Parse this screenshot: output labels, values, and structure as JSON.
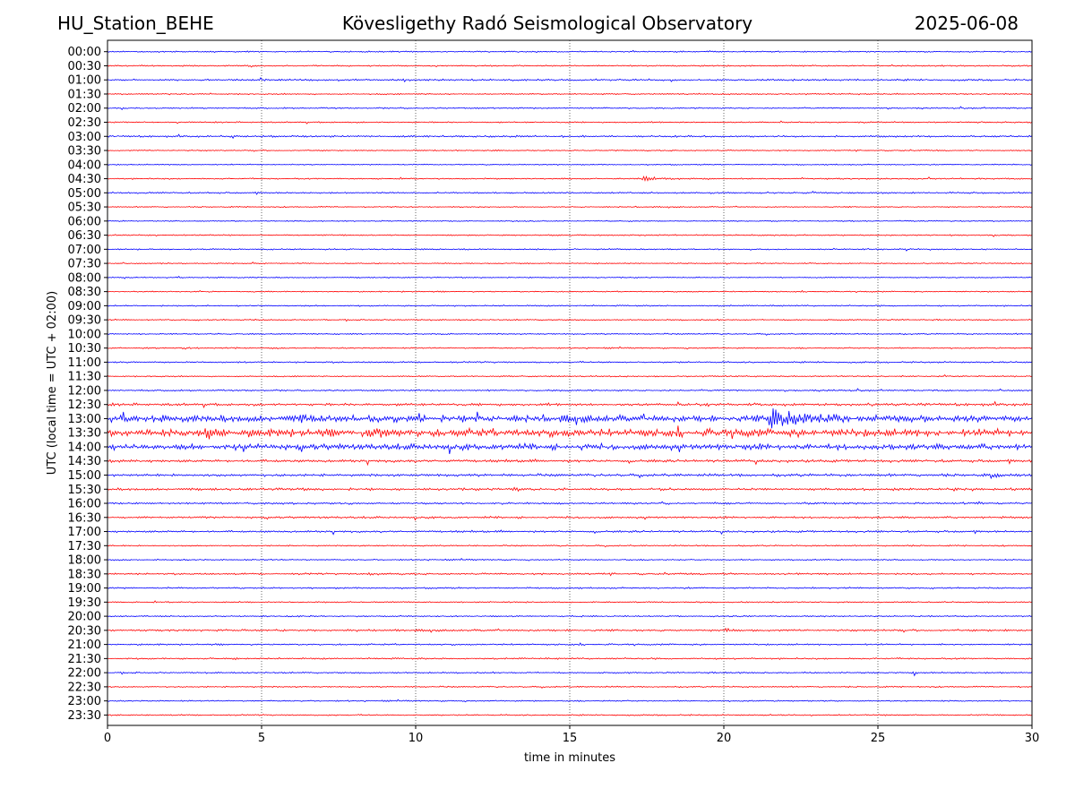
{
  "header": {
    "station": "HU_Station_BEHE",
    "observatory": "Kövesligethy Radó Seismological Observatory",
    "date": "2025-06-08"
  },
  "chart_data": {
    "type": "line",
    "title": "Kövesligethy Radó Seismological Observatory",
    "xlabel": "time in minutes",
    "ylabel": "UTC (local time = UTC + 02:00)",
    "xlim": [
      0,
      30
    ],
    "xticks": [
      0,
      5,
      10,
      15,
      20,
      25,
      30
    ],
    "grid_x": "dotted vertical lines at 5-minute ticks",
    "row_labels": [
      "00:00",
      "00:30",
      "01:00",
      "01:30",
      "02:00",
      "02:30",
      "03:00",
      "03:30",
      "04:00",
      "04:30",
      "05:00",
      "05:30",
      "06:00",
      "06:30",
      "07:00",
      "07:30",
      "08:00",
      "08:30",
      "09:00",
      "09:30",
      "10:00",
      "10:30",
      "11:00",
      "11:30",
      "12:00",
      "12:30",
      "13:00",
      "13:30",
      "14:00",
      "14:30",
      "15:00",
      "15:30",
      "16:00",
      "16:30",
      "17:00",
      "17:30",
      "18:00",
      "18:30",
      "19:00",
      "19:30",
      "20:00",
      "20:30",
      "21:00",
      "21:30",
      "22:00",
      "22:30",
      "23:00",
      "23:30"
    ],
    "row_colors": [
      "#0000ff",
      "#ff0000"
    ],
    "row_noise": [
      0.6,
      0.6,
      0.8,
      0.6,
      0.6,
      0.6,
      0.8,
      0.5,
      0.5,
      0.6,
      0.7,
      0.5,
      0.5,
      0.6,
      0.6,
      0.5,
      0.5,
      0.5,
      0.6,
      0.6,
      0.6,
      0.6,
      0.7,
      0.6,
      0.7,
      1.2,
      3.0,
      3.4,
      2.6,
      1.2,
      1.2,
      1.1,
      0.9,
      0.9,
      0.9,
      0.6,
      0.6,
      0.8,
      0.7,
      0.6,
      0.6,
      0.9,
      0.7,
      0.7,
      0.7,
      0.6,
      0.6,
      0.6
    ],
    "events": [
      {
        "row": "04:30",
        "t": 17.4,
        "amp": 4,
        "dur": 1.0
      },
      {
        "row": "10:00",
        "t": 10.9,
        "amp": 2,
        "dur": 0.2
      },
      {
        "row": "10:30",
        "t": 2.5,
        "amp": 3,
        "dur": 0.2
      },
      {
        "row": "12:30",
        "t": 19.2,
        "amp": 2.5,
        "dur": 0.6
      },
      {
        "row": "13:00",
        "t": 6.3,
        "amp": 5,
        "dur": 0.5
      },
      {
        "row": "13:00",
        "t": 10.1,
        "amp": 5,
        "dur": 0.4
      },
      {
        "row": "13:00",
        "t": 12.0,
        "amp": 6,
        "dur": 0.4
      },
      {
        "row": "13:00",
        "t": 21.5,
        "amp": 13,
        "dur": 3.0
      },
      {
        "row": "13:30",
        "t": 3.2,
        "amp": 5,
        "dur": 0.7
      },
      {
        "row": "13:30",
        "t": 8.5,
        "amp": 4,
        "dur": 1.2
      },
      {
        "row": "14:00",
        "t": 4.3,
        "amp": 4,
        "dur": 0.5
      },
      {
        "row": "15:00",
        "t": 28.7,
        "amp": 3,
        "dur": 0.6
      },
      {
        "row": "15:30",
        "t": 13.2,
        "amp": 2,
        "dur": 0.5
      },
      {
        "row": "18:30",
        "t": 8.5,
        "amp": 2,
        "dur": 0.5
      },
      {
        "row": "20:30",
        "t": 20.1,
        "amp": 4,
        "dur": 0.5
      },
      {
        "row": "20:30",
        "t": 9.4,
        "amp": 2.5,
        "dur": 0.2
      },
      {
        "row": "21:30",
        "t": 4.2,
        "amp": 2,
        "dur": 0.2
      },
      {
        "row": "22:00",
        "t": 26.2,
        "amp": 2,
        "dur": 0.2
      }
    ]
  }
}
